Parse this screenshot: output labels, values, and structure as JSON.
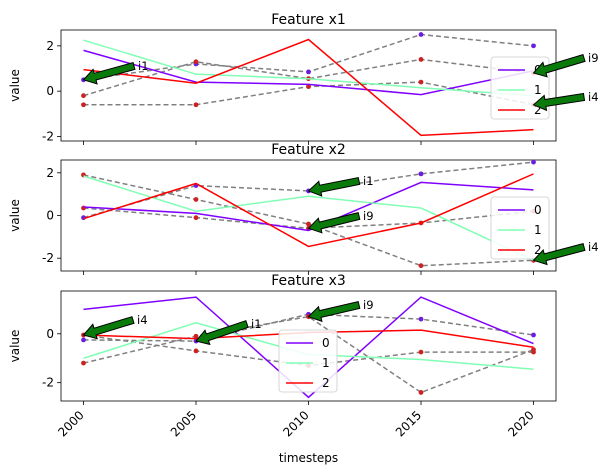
{
  "chart_data": [
    {
      "type": "line",
      "title": "Feature x1",
      "xlabel": "",
      "ylabel": "value",
      "x": [
        2000,
        2005,
        2010,
        2015,
        2020
      ],
      "ylim": [
        -2.2,
        2.7
      ],
      "yticks": [
        -2,
        0,
        2
      ],
      "grid": false,
      "legend_position": "right",
      "series": [
        {
          "name": "0",
          "color": "#8000ff",
          "values": [
            1.8,
            0.4,
            0.3,
            -0.15,
            0.9
          ]
        },
        {
          "name": "1",
          "color": "#80ffb4",
          "values": [
            2.25,
            0.75,
            0.55,
            0.15,
            -0.2
          ]
        },
        {
          "name": "2",
          "color": "#ff0000",
          "values": [
            0.95,
            0.35,
            2.28,
            -1.95,
            -1.7
          ]
        }
      ],
      "reference_lines": [
        {
          "name": "i1",
          "values": [
            0.5,
            1.2,
            0.85,
            2.5,
            2.0
          ],
          "dot_color": "#6a1fe0"
        },
        {
          "name": "i4",
          "values": [
            -0.6,
            -0.6,
            0.2,
            0.4,
            -0.6
          ],
          "dot_color": "#cc2222"
        },
        {
          "name": "i9",
          "values": [
            -0.2,
            1.3,
            0.55,
            1.4,
            0.8
          ],
          "dot_color": "#cc2222"
        }
      ],
      "annotations": [
        {
          "text": "i1",
          "target_x": 2000,
          "target_y": 0.5
        },
        {
          "text": "i9",
          "target_x": 2020,
          "target_y": 0.8
        },
        {
          "text": "i4",
          "target_x": 2020,
          "target_y": -0.6
        }
      ]
    },
    {
      "type": "line",
      "title": "Feature x2",
      "xlabel": "",
      "ylabel": "value",
      "x": [
        2000,
        2005,
        2010,
        2015,
        2020
      ],
      "ylim": [
        -2.6,
        2.6
      ],
      "yticks": [
        -2,
        0,
        2
      ],
      "grid": false,
      "legend_position": "right",
      "series": [
        {
          "name": "0",
          "color": "#8000ff",
          "values": [
            0.4,
            0.1,
            -0.7,
            1.55,
            1.2
          ]
        },
        {
          "name": "1",
          "color": "#80ffb4",
          "values": [
            1.85,
            0.2,
            0.9,
            0.35,
            -2.1
          ]
        },
        {
          "name": "2",
          "color": "#ff0000",
          "values": [
            -0.15,
            1.5,
            -1.45,
            -0.35,
            1.95
          ]
        }
      ],
      "reference_lines": [
        {
          "name": "i1",
          "values": [
            -0.1,
            1.4,
            1.15,
            1.95,
            2.5
          ],
          "dot_color": "#6a1fe0"
        },
        {
          "name": "i4",
          "values": [
            1.9,
            0.75,
            -0.4,
            -2.35,
            -2.1
          ],
          "dot_color": "#cc2222"
        },
        {
          "name": "i9",
          "values": [
            0.35,
            -0.1,
            -0.6,
            -0.35,
            0.2
          ],
          "dot_color": "#cc2222"
        }
      ],
      "annotations": [
        {
          "text": "i1",
          "target_x": 2010,
          "target_y": 1.15
        },
        {
          "text": "i9",
          "target_x": 2010,
          "target_y": -0.6
        },
        {
          "text": "i4",
          "target_x": 2020,
          "target_y": -2.1
        }
      ]
    },
    {
      "type": "line",
      "title": "Feature x3",
      "xlabel": "timesteps",
      "ylabel": "value",
      "x": [
        2000,
        2005,
        2010,
        2015,
        2020
      ],
      "ylim": [
        -2.75,
        1.75
      ],
      "yticks": [
        -2,
        0
      ],
      "xticks": [
        2000,
        2005,
        2010,
        2015,
        2020
      ],
      "grid": false,
      "legend_position": "center",
      "series": [
        {
          "name": "0",
          "color": "#8000ff",
          "values": [
            1.0,
            1.5,
            -2.6,
            1.5,
            -0.4
          ]
        },
        {
          "name": "1",
          "color": "#80ffb4",
          "values": [
            -1.0,
            0.45,
            -0.85,
            -1.05,
            -1.45
          ]
        },
        {
          "name": "2",
          "color": "#ff0000",
          "values": [
            -0.05,
            -0.2,
            0.05,
            0.15,
            -0.55
          ]
        }
      ],
      "reference_lines": [
        {
          "name": "i1",
          "values": [
            -0.25,
            -0.3,
            0.8,
            0.6,
            -0.05
          ],
          "dot_color": "#6a1fe0"
        },
        {
          "name": "i4",
          "values": [
            -0.05,
            -0.7,
            -1.3,
            -0.75,
            -0.75
          ],
          "dot_color": "#cc2222"
        },
        {
          "name": "i9",
          "values": [
            -1.2,
            -0.1,
            0.7,
            -2.4,
            -0.65
          ],
          "dot_color": "#cc2222"
        }
      ],
      "annotations": [
        {
          "text": "i4",
          "target_x": 2000,
          "target_y": -0.05
        },
        {
          "text": "i1",
          "target_x": 2005,
          "target_y": -0.3
        },
        {
          "text": "i9",
          "target_x": 2010,
          "target_y": 0.7
        }
      ]
    }
  ]
}
